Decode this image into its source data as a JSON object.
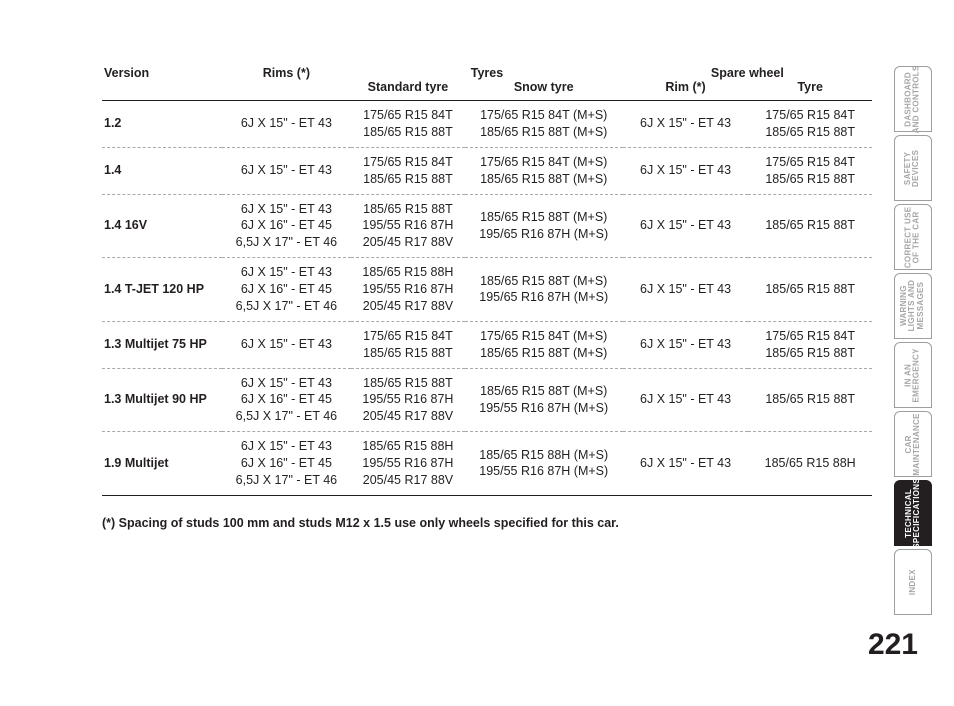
{
  "headers": {
    "version": "Version",
    "rims": "Rims  (*)",
    "tyres": "Tyres",
    "spare": "Spare wheel",
    "std": "Standard tyre",
    "snow": "Snow tyre",
    "spareRim": "Rim (*)",
    "spareTyre": "Tyre"
  },
  "rows": [
    {
      "version": "1.2",
      "rims": "6J X 15\" - ET 43",
      "std": "175/65 R15 84T\n185/65 R15 88T",
      "snow": "175/65 R15 84T (M+S)\n185/65 R15 88T (M+S)",
      "srim": "6J X 15\" - ET 43",
      "styre": "175/65 R15 84T\n185/65 R15 88T"
    },
    {
      "version": "1.4",
      "rims": "6J X 15\" - ET 43",
      "std": "175/65 R15 84T\n185/65 R15 88T",
      "snow": "175/65 R15 84T (M+S)\n185/65 R15 88T (M+S)",
      "srim": "6J X 15\" - ET 43",
      "styre": "175/65 R15 84T\n185/65 R15 88T"
    },
    {
      "version": "1.4 16V",
      "rims": "6J X 15\" - ET 43\n6J X 16\" - ET 45\n6,5J X 17\" - ET 46",
      "std": "185/65 R15 88T\n195/55 R16 87H\n205/45 R17 88V",
      "snow": "185/65 R15 88T (M+S)\n195/65 R16 87H (M+S)",
      "srim": "6J X 15\" - ET 43",
      "styre": "185/65 R15 88T"
    },
    {
      "version": "1.4 T-JET 120 HP",
      "rims": "6J X 15\" - ET 43\n6J X 16\" - ET 45\n6,5J X 17\" - ET 46",
      "std": "185/65 R15 88H\n195/55 R16 87H\n205/45 R17 88V",
      "snow": "185/65 R15 88T (M+S)\n195/65 R16 87H (M+S)",
      "srim": "6J X 15\" - ET 43",
      "styre": "185/65 R15 88T"
    },
    {
      "version": "1.3 Multijet 75 HP",
      "rims": "6J X 15\" - ET 43",
      "std": "175/65 R15 84T\n185/65 R15 88T",
      "snow": "175/65 R15 84T (M+S)\n185/65 R15 88T (M+S)",
      "srim": "6J X 15\" - ET 43",
      "styre": "175/65 R15 84T\n185/65 R15 88T"
    },
    {
      "version": "1.3 Multijet 90 HP",
      "rims": "6J X 15\" - ET 43\n6J X 16\" - ET 45\n6,5J X 17\" - ET 46",
      "std": "185/65 R15 88T\n195/55 R16 87H\n205/45 R17 88V",
      "snow": "185/65 R15 88T (M+S)\n195/55 R16 87H (M+S)",
      "srim": "6J X 15\" - ET 43",
      "styre": "185/65 R15 88T"
    },
    {
      "version": "1.9 Multijet",
      "rims": "6J X 15\" - ET 43\n6J X 16\" - ET 45\n6,5J X 17\" - ET 46",
      "std": "185/65 R15 88H\n195/55 R16 87H\n205/45 R17 88V",
      "snow": "185/65 R15 88H (M+S)\n195/55 R16 87H (M+S)",
      "srim": "6J X 15\" - ET 43",
      "styre": "185/65 R15 88H"
    }
  ],
  "footnote": "(*) Spacing of studs 100 mm and studs M12 x 1.5 use only wheels specified for this car.",
  "pageNumber": "221",
  "tabs": [
    {
      "label": "DASHBOARD\nAND CONTROLS",
      "active": false
    },
    {
      "label": "SAFETY\nDEVICES",
      "active": false
    },
    {
      "label": "CORRECT USE\nOF THE CAR",
      "active": false
    },
    {
      "label": "WARNING\nLIGHTS AND\nMESSAGES",
      "active": false
    },
    {
      "label": "IN AN\nEMERGENCY",
      "active": false
    },
    {
      "label": "CAR\nMAINTENANCE",
      "active": false
    },
    {
      "label": "TECHNICAL\nSPECIFICATIONS",
      "active": true
    },
    {
      "label": "INDEX",
      "active": false
    }
  ]
}
